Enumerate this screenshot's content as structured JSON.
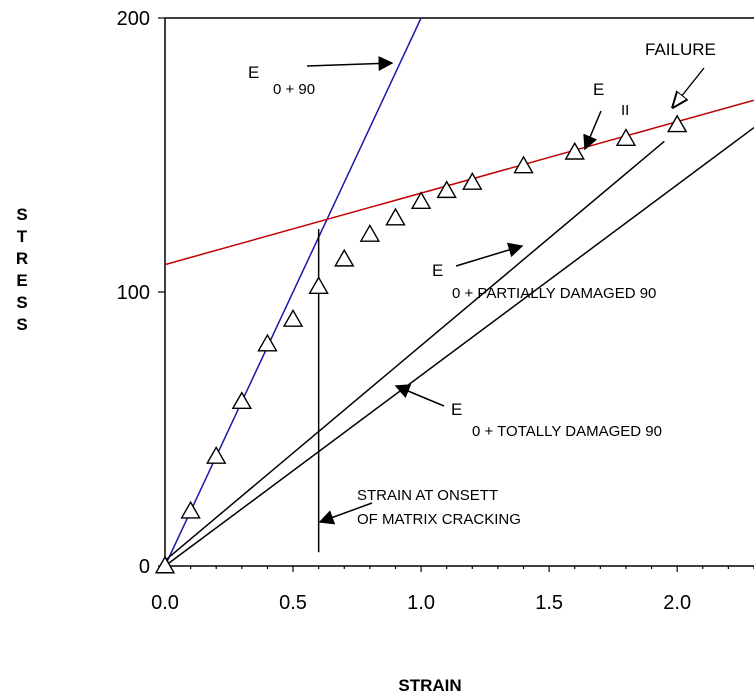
{
  "chart_data": {
    "type": "scatter",
    "xlabel": "STRAIN",
    "ylabel": "STRESS",
    "xlim": [
      0.0,
      2.3
    ],
    "ylim": [
      0,
      200
    ],
    "x_ticks": [
      "0.0",
      "0.5",
      "1.0",
      "1.5",
      "2.0"
    ],
    "y_ticks": [
      "0",
      "100",
      "200"
    ],
    "grid": false,
    "series": [
      {
        "marker": "triangle-open",
        "color": "#000000",
        "x": [
          0.0,
          0.1,
          0.2,
          0.3,
          0.4,
          0.5,
          0.6,
          0.7,
          0.8,
          0.9,
          1.0,
          1.1,
          1.2,
          1.4,
          1.6,
          1.8,
          2.0
        ],
        "y": [
          0,
          20,
          40,
          60,
          81,
          90,
          102,
          112,
          121,
          127,
          133,
          137,
          140,
          146,
          151,
          156,
          161
        ]
      }
    ],
    "lines": [
      {
        "color": "#1a1aa6",
        "x": [
          0.0,
          1.0
        ],
        "y": [
          0,
          200
        ]
      },
      {
        "color": "#c00000",
        "x": [
          0.0,
          2.3
        ],
        "y": [
          110,
          170
        ]
      },
      {
        "color": "#000000",
        "x": [
          0.0,
          1.95
        ],
        "y": [
          2,
          155
        ]
      },
      {
        "color": "#000000",
        "x": [
          0.0,
          2.3
        ],
        "y": [
          0,
          160
        ]
      },
      {
        "color": "#000000",
        "x": [
          0.6,
          0.6
        ],
        "y": [
          5,
          123
        ]
      }
    ],
    "annotations": {
      "e090_main": "E",
      "e090_sub": "0 + 90",
      "eii_main": "E",
      "eii_sub": "II",
      "failure": "FAILURE",
      "partial_main": "E",
      "partial_sub": "0 + PARTIALLY DAMAGED 90",
      "total_main": "E",
      "total_sub": "0 + TOTALLY DAMAGED 90",
      "onset_line1": "STRAIN  AT  ONSETT",
      "onset_line2": "OF  MATRIX CRACKING"
    }
  }
}
